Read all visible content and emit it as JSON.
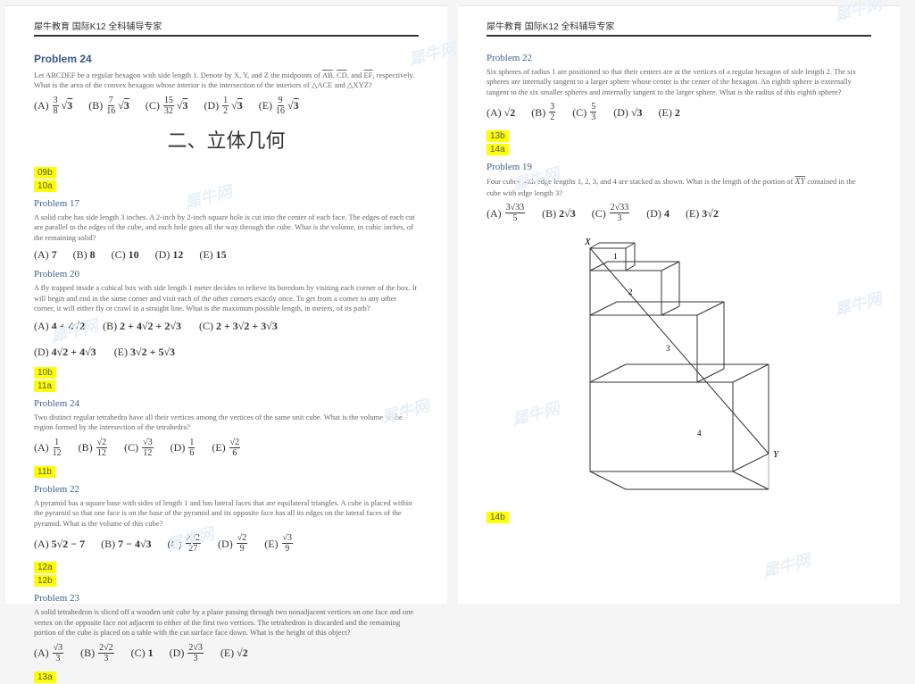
{
  "header": "犀牛教育 国际K12 全科辅导专家",
  "watermark_text": "犀牛网",
  "left": {
    "p24": {
      "title": "Problem 24",
      "text": "Let ABCDEF be a regular hexagon with side length 1. Denote by X, Y, and Z the midpoints of <span class=\"overline\">AB</span>, <span class=\"overline\">CD</span>, and <span class=\"overline\">EF</span>, respectively. What is the area of the convex hexagon whose interior is the intersection of the interiors of △ACE and △XYZ?",
      "opts": {
        "A": {
          "n": "3",
          "d": "8",
          "r": "3"
        },
        "B": {
          "n": "7",
          "d": "16",
          "r": "3"
        },
        "C": {
          "n": "15",
          "d": "32",
          "r": "3"
        },
        "D": {
          "n": "1",
          "d": "2",
          "r": "3"
        },
        "E": {
          "n": "9",
          "d": "16",
          "r": "3"
        }
      }
    },
    "section_title": "二、立体几何",
    "tags1": [
      "09b",
      "10a"
    ],
    "p17": {
      "title": "Problem 17",
      "text": "A solid cube has side length 3 inches. A 2-inch by 2-inch square hole is cut into the center of each face. The edges of each cut are parallel to the edges of the cube, and each hole goes all the way through the cube. What is the volume, in cubic inches, of the remaining solid?",
      "A": "7",
      "B": "8",
      "C": "10",
      "D": "12",
      "E": "15"
    },
    "p20": {
      "title": "Problem 20",
      "text": "A fly trapped inside a cubical box with side length 1 meter decides to relieve its boredom by visiting each corner of the box. It will begin and end in the same corner and visit each of the other corners exactly once. To get from a corner to any other corner, it will either fly or crawl in a straight line. What is the maximum possible length, in meters, of its path?",
      "A": "4 + 4√2",
      "B": "2 + 4√2 + 2√3",
      "C": "2 + 3√2 + 3√3",
      "D": "4√2 + 4√3",
      "E": "3√2 + 5√3"
    },
    "tags2": [
      "10b",
      "11a"
    ],
    "p24b": {
      "title": "Problem 24",
      "text": "Two distinct regular tetrahedra have all their vertices among the vertices of the same unit cube. What is the volume of the region formed by the intersection of the tetrahedra?",
      "opts": {
        "A": {
          "n": "1",
          "d": "12"
        },
        "B": {
          "n": "√2",
          "d": "12"
        },
        "C": {
          "n": "√3",
          "d": "12"
        },
        "D": {
          "n": "1",
          "d": "6"
        },
        "E": {
          "n": "√2",
          "d": "6"
        }
      }
    },
    "tags3": [
      "11b"
    ],
    "p22": {
      "title": "Problem 22",
      "text": "A pyramid has a square base with sides of length 1 and has lateral faces that are equilateral triangles. A cube is placed within the pyramid so that one face is on the base of the pyramid and its opposite face has all its edges on the lateral faces of the pyramid. What is the volume of this cube?",
      "A": "5√2 − 7",
      "B": "7 − 4√3",
      "C": {
        "n": "2√2",
        "d": "27"
      },
      "D": {
        "n": "√2",
        "d": "9"
      },
      "E": {
        "n": "√3",
        "d": "9"
      }
    },
    "tags4": [
      "12a",
      "12b"
    ],
    "p23": {
      "title": "Problem 23",
      "text": "A solid tetrahedron is sliced off a wooden unit cube by a plane passing through two nonadjacent vertices on one face and one vertex on the opposite face not adjacent to either of the first two vertices. The tetrahedron is discarded and the remaining portion of the cube is placed on a table with the cut surface face down. What is the height of this object?",
      "A": {
        "n": "√3",
        "d": "3"
      },
      "B": {
        "n": "2√2",
        "d": "3"
      },
      "C": "1",
      "D": {
        "n": "2√3",
        "d": "3"
      },
      "E": "√2"
    },
    "tags5": [
      "13a"
    ]
  },
  "right": {
    "p22": {
      "title": "Problem 22",
      "text": "Six spheres of radius 1 are positioned so that their centers are at the vertices of a regular hexagon of side length 2. The six spheres are internally tangent to a larger sphere whose center is the center of the hexagon. An eighth sphere is externally tangent to the six smaller spheres and internally tangent to the larger sphere. What is the radius of this eighth sphere?",
      "A": "√2",
      "B": {
        "n": "3",
        "d": "2"
      },
      "C": {
        "n": "5",
        "d": "3"
      },
      "D": "√3",
      "E": "2"
    },
    "tags1": [
      "13b",
      "14a"
    ],
    "p19": {
      "title": "Problem 19",
      "text": "Four cubes with edge lengths 1, 2, 3, and 4 are stacked as shown. What is the length of the portion of <span class=\"overline inline-math\">XY</span> contained in the cube with edge length 3?",
      "opts": {
        "A": {
          "n": "3√33",
          "d": "5"
        },
        "B": "2√3",
        "C": {
          "n": "2√33",
          "d": "3"
        },
        "D": "4",
        "E": "3√2"
      }
    },
    "tags2": [
      "14b"
    ]
  }
}
